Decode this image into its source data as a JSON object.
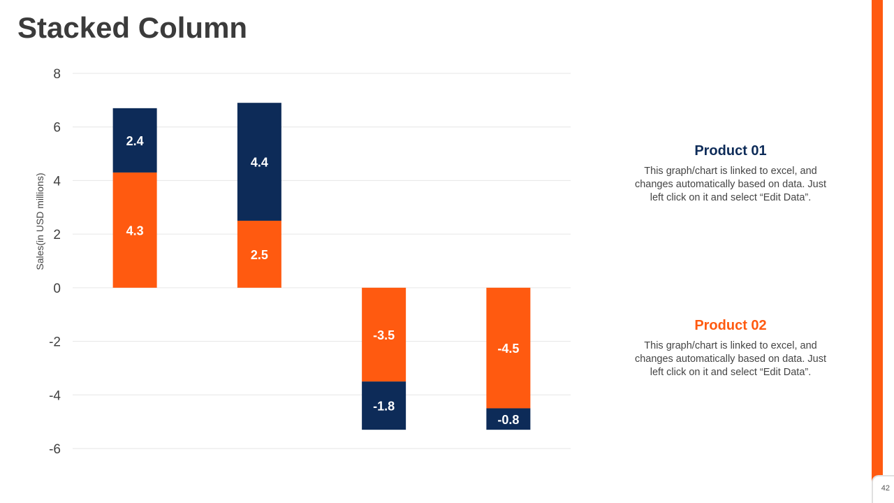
{
  "slide": {
    "title": "Stacked Column",
    "page_number": "42",
    "accent_color": "#FF5A10"
  },
  "legend": [
    {
      "title": "Product 01",
      "color": "#0D2B58",
      "description": "This graph/chart is linked to excel, and changes automatically based on data. Just left click on it and select “Edit Data”."
    },
    {
      "title": "Product 02",
      "color": "#FF5A10",
      "description": "This graph/chart is linked to excel, and changes automatically based on data. Just left click on it and select “Edit Data”."
    }
  ],
  "chart_data": {
    "type": "bar",
    "stacked": true,
    "categories": [
      "",
      "",
      "",
      ""
    ],
    "series": [
      {
        "name": "Product 02",
        "color": "#FF5A10",
        "values": [
          4.3,
          2.5,
          -3.5,
          -4.5
        ]
      },
      {
        "name": "Product 01",
        "color": "#0D2B58",
        "values": [
          2.4,
          4.4,
          -1.8,
          -0.8
        ]
      }
    ],
    "ylabel": "Sales(in USD millions)",
    "xlabel": "",
    "ylim": [
      -6,
      8
    ],
    "yticks": [
      8,
      6,
      4,
      2,
      0,
      -2,
      -4,
      -6
    ],
    "grid": true
  }
}
